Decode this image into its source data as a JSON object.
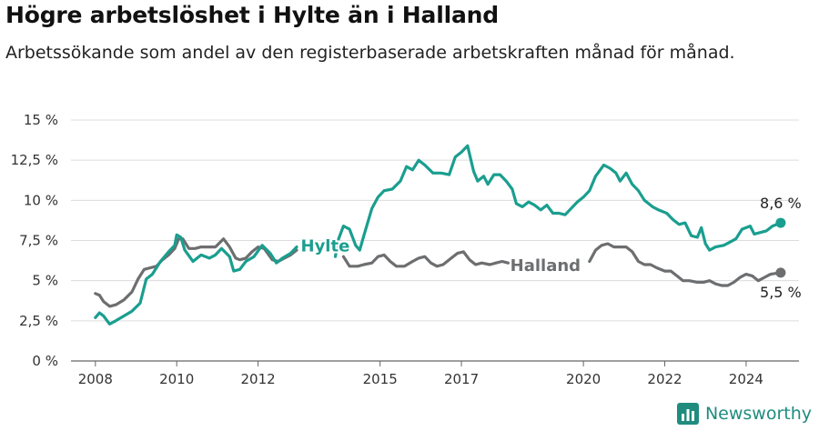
{
  "header": {
    "title": "Högre arbetslöshet i Hylte än i Halland",
    "subtitle": "Arbetssökande som andel av den registerbaserade arbetskraften månad för månad."
  },
  "brand": {
    "name": "Newsworthy",
    "icon": "newsworthy-logo-icon",
    "color": "#1f8c7e"
  },
  "chart_data": {
    "type": "line",
    "title": "Högre arbetslöshet i Hylte än i Halland",
    "subtitle": "Arbetssökande som andel av den registerbaserade arbetskraften månad för månad.",
    "xlabel": "",
    "ylabel": "",
    "xlim": [
      2007.4,
      2025.3
    ],
    "ylim": [
      0,
      15
    ],
    "x_ticks": [
      2008,
      2010,
      2012,
      2015,
      2017,
      2020,
      2022,
      2024
    ],
    "x_tick_labels": [
      "2008",
      "2010",
      "2012",
      "2015",
      "2017",
      "2020",
      "2022",
      "2024"
    ],
    "y_ticks": [
      0,
      2.5,
      5,
      7.5,
      10,
      12.5,
      15
    ],
    "y_tick_labels": [
      "0 %",
      "2,5 %",
      "5 %",
      "7,5 %",
      "10 %",
      "12,5 %",
      "15 %"
    ],
    "grid": true,
    "series": [
      {
        "name": "Hylte",
        "color": "#1a9e8f",
        "end_label": "8,6 %",
        "segments": [
          [
            [
              2008.0,
              2.7
            ],
            [
              2008.1,
              3.0
            ],
            [
              2008.2,
              2.8
            ],
            [
              2008.35,
              2.3
            ],
            [
              2008.5,
              2.5
            ],
            [
              2008.7,
              2.8
            ],
            [
              2008.9,
              3.1
            ],
            [
              2009.1,
              3.6
            ],
            [
              2009.25,
              5.1
            ],
            [
              2009.4,
              5.4
            ],
            [
              2009.6,
              6.2
            ],
            [
              2009.8,
              6.8
            ],
            [
              2009.95,
              7.2
            ],
            [
              2010.0,
              7.85
            ],
            [
              2010.1,
              7.7
            ],
            [
              2010.2,
              6.9
            ],
            [
              2010.4,
              6.2
            ],
            [
              2010.6,
              6.6
            ],
            [
              2010.8,
              6.4
            ],
            [
              2010.95,
              6.6
            ],
            [
              2011.1,
              7.0
            ],
            [
              2011.3,
              6.5
            ],
            [
              2011.4,
              5.6
            ],
            [
              2011.55,
              5.7
            ],
            [
              2011.7,
              6.2
            ],
            [
              2011.9,
              6.5
            ],
            [
              2012.1,
              7.2
            ],
            [
              2012.3,
              6.7
            ],
            [
              2012.45,
              6.1
            ],
            [
              2012.6,
              6.4
            ],
            [
              2012.8,
              6.7
            ],
            [
              2012.95,
              7.1
            ]
          ],
          [
            [
              2013.9,
              6.5
            ],
            [
              2013.98,
              7.6
            ],
            [
              2014.1,
              8.4
            ],
            [
              2014.25,
              8.2
            ],
            [
              2014.4,
              7.2
            ],
            [
              2014.5,
              6.9
            ],
            [
              2014.6,
              7.8
            ],
            [
              2014.8,
              9.5
            ],
            [
              2014.95,
              10.2
            ],
            [
              2015.1,
              10.6
            ],
            [
              2015.3,
              10.7
            ],
            [
              2015.5,
              11.2
            ],
            [
              2015.65,
              12.1
            ],
            [
              2015.8,
              11.9
            ],
            [
              2015.95,
              12.5
            ],
            [
              2016.1,
              12.2
            ],
            [
              2016.3,
              11.7
            ],
            [
              2016.5,
              11.7
            ],
            [
              2016.7,
              11.6
            ],
            [
              2016.85,
              12.7
            ],
            [
              2017.0,
              13.0
            ],
            [
              2017.15,
              13.4
            ],
            [
              2017.3,
              11.8
            ],
            [
              2017.4,
              11.2
            ],
            [
              2017.55,
              11.5
            ],
            [
              2017.65,
              11.0
            ],
            [
              2017.8,
              11.6
            ],
            [
              2017.95,
              11.6
            ],
            [
              2018.1,
              11.2
            ],
            [
              2018.25,
              10.7
            ],
            [
              2018.35,
              9.8
            ],
            [
              2018.5,
              9.6
            ],
            [
              2018.65,
              9.9
            ],
            [
              2018.8,
              9.7
            ],
            [
              2018.95,
              9.4
            ],
            [
              2019.1,
              9.7
            ],
            [
              2019.25,
              9.2
            ],
            [
              2019.4,
              9.2
            ],
            [
              2019.55,
              9.1
            ],
            [
              2019.7,
              9.5
            ],
            [
              2019.85,
              9.9
            ],
            [
              2020.0,
              10.2
            ],
            [
              2020.15,
              10.6
            ],
            [
              2020.3,
              11.5
            ],
            [
              2020.5,
              12.2
            ],
            [
              2020.65,
              12.0
            ],
            [
              2020.8,
              11.7
            ],
            [
              2020.9,
              11.2
            ],
            [
              2021.05,
              11.7
            ],
            [
              2021.2,
              11.0
            ],
            [
              2021.35,
              10.6
            ],
            [
              2021.5,
              10.0
            ],
            [
              2021.7,
              9.6
            ],
            [
              2021.85,
              9.4
            ],
            [
              2022.05,
              9.2
            ],
            [
              2022.2,
              8.8
            ],
            [
              2022.35,
              8.5
            ],
            [
              2022.5,
              8.6
            ],
            [
              2022.65,
              7.8
            ],
            [
              2022.8,
              7.7
            ],
            [
              2022.9,
              8.3
            ],
            [
              2023.0,
              7.3
            ],
            [
              2023.1,
              6.9
            ],
            [
              2023.25,
              7.1
            ],
            [
              2023.45,
              7.2
            ],
            [
              2023.6,
              7.4
            ],
            [
              2023.75,
              7.6
            ],
            [
              2023.9,
              8.2
            ],
            [
              2024.1,
              8.4
            ],
            [
              2024.2,
              7.9
            ],
            [
              2024.35,
              8.0
            ],
            [
              2024.5,
              8.1
            ],
            [
              2024.65,
              8.4
            ],
            [
              2024.85,
              8.6
            ]
          ]
        ]
      },
      {
        "name": "Halland",
        "color": "#6d6e70",
        "end_label": "5,5 %",
        "segments": [
          [
            [
              2008.0,
              4.2
            ],
            [
              2008.1,
              4.1
            ],
            [
              2008.2,
              3.7
            ],
            [
              2008.35,
              3.4
            ],
            [
              2008.5,
              3.5
            ],
            [
              2008.7,
              3.8
            ],
            [
              2008.9,
              4.3
            ],
            [
              2009.05,
              5.1
            ],
            [
              2009.2,
              5.7
            ],
            [
              2009.35,
              5.8
            ],
            [
              2009.5,
              5.9
            ],
            [
              2009.65,
              6.3
            ],
            [
              2009.8,
              6.6
            ],
            [
              2009.95,
              7.0
            ],
            [
              2010.05,
              7.6
            ],
            [
              2010.15,
              7.6
            ],
            [
              2010.3,
              7.0
            ],
            [
              2010.45,
              7.0
            ],
            [
              2010.6,
              7.1
            ],
            [
              2010.8,
              7.1
            ],
            [
              2010.95,
              7.1
            ],
            [
              2011.15,
              7.6
            ],
            [
              2011.3,
              7.1
            ],
            [
              2011.45,
              6.4
            ],
            [
              2011.55,
              6.3
            ],
            [
              2011.7,
              6.4
            ],
            [
              2011.85,
              6.8
            ],
            [
              2012.0,
              7.1
            ],
            [
              2012.15,
              7.0
            ],
            [
              2012.35,
              6.3
            ],
            [
              2012.5,
              6.2
            ],
            [
              2012.65,
              6.4
            ],
            [
              2012.8,
              6.6
            ],
            [
              2012.95,
              6.9
            ]
          ],
          [
            [
              2014.1,
              6.5
            ],
            [
              2014.25,
              5.9
            ],
            [
              2014.45,
              5.9
            ],
            [
              2014.6,
              6.0
            ],
            [
              2014.8,
              6.1
            ],
            [
              2014.95,
              6.5
            ],
            [
              2015.1,
              6.6
            ],
            [
              2015.25,
              6.2
            ],
            [
              2015.4,
              5.9
            ],
            [
              2015.6,
              5.9
            ],
            [
              2015.8,
              6.2
            ],
            [
              2015.95,
              6.4
            ],
            [
              2016.1,
              6.5
            ],
            [
              2016.25,
              6.1
            ],
            [
              2016.4,
              5.9
            ],
            [
              2016.55,
              6.0
            ],
            [
              2016.75,
              6.4
            ],
            [
              2016.9,
              6.7
            ],
            [
              2017.05,
              6.8
            ],
            [
              2017.2,
              6.3
            ],
            [
              2017.35,
              6.0
            ],
            [
              2017.5,
              6.1
            ],
            [
              2017.7,
              6.0
            ],
            [
              2017.85,
              6.1
            ],
            [
              2018.0,
              6.2
            ],
            [
              2018.15,
              6.1
            ]
          ],
          [
            [
              2020.15,
              6.2
            ],
            [
              2020.3,
              6.9
            ],
            [
              2020.45,
              7.2
            ],
            [
              2020.6,
              7.3
            ],
            [
              2020.75,
              7.1
            ],
            [
              2020.9,
              7.1
            ],
            [
              2021.05,
              7.1
            ],
            [
              2021.2,
              6.8
            ],
            [
              2021.35,
              6.2
            ],
            [
              2021.5,
              6.0
            ],
            [
              2021.65,
              6.0
            ],
            [
              2021.8,
              5.8
            ],
            [
              2022.0,
              5.6
            ],
            [
              2022.15,
              5.6
            ],
            [
              2022.3,
              5.3
            ],
            [
              2022.45,
              5.0
            ],
            [
              2022.6,
              5.0
            ],
            [
              2022.8,
              4.9
            ],
            [
              2022.95,
              4.9
            ],
            [
              2023.1,
              5.0
            ],
            [
              2023.25,
              4.8
            ],
            [
              2023.4,
              4.7
            ],
            [
              2023.55,
              4.7
            ],
            [
              2023.7,
              4.9
            ],
            [
              2023.85,
              5.2
            ],
            [
              2024.0,
              5.4
            ],
            [
              2024.15,
              5.3
            ],
            [
              2024.3,
              5.0
            ],
            [
              2024.45,
              5.2
            ],
            [
              2024.6,
              5.4
            ],
            [
              2024.85,
              5.5
            ]
          ]
        ]
      }
    ],
    "annotations": [
      {
        "series": "Hylte",
        "text": "Hylte",
        "at": [
          2013.05,
          7.1
        ]
      },
      {
        "series": "Halland",
        "text": "Halland",
        "at": [
          2018.2,
          5.9
        ]
      }
    ]
  }
}
